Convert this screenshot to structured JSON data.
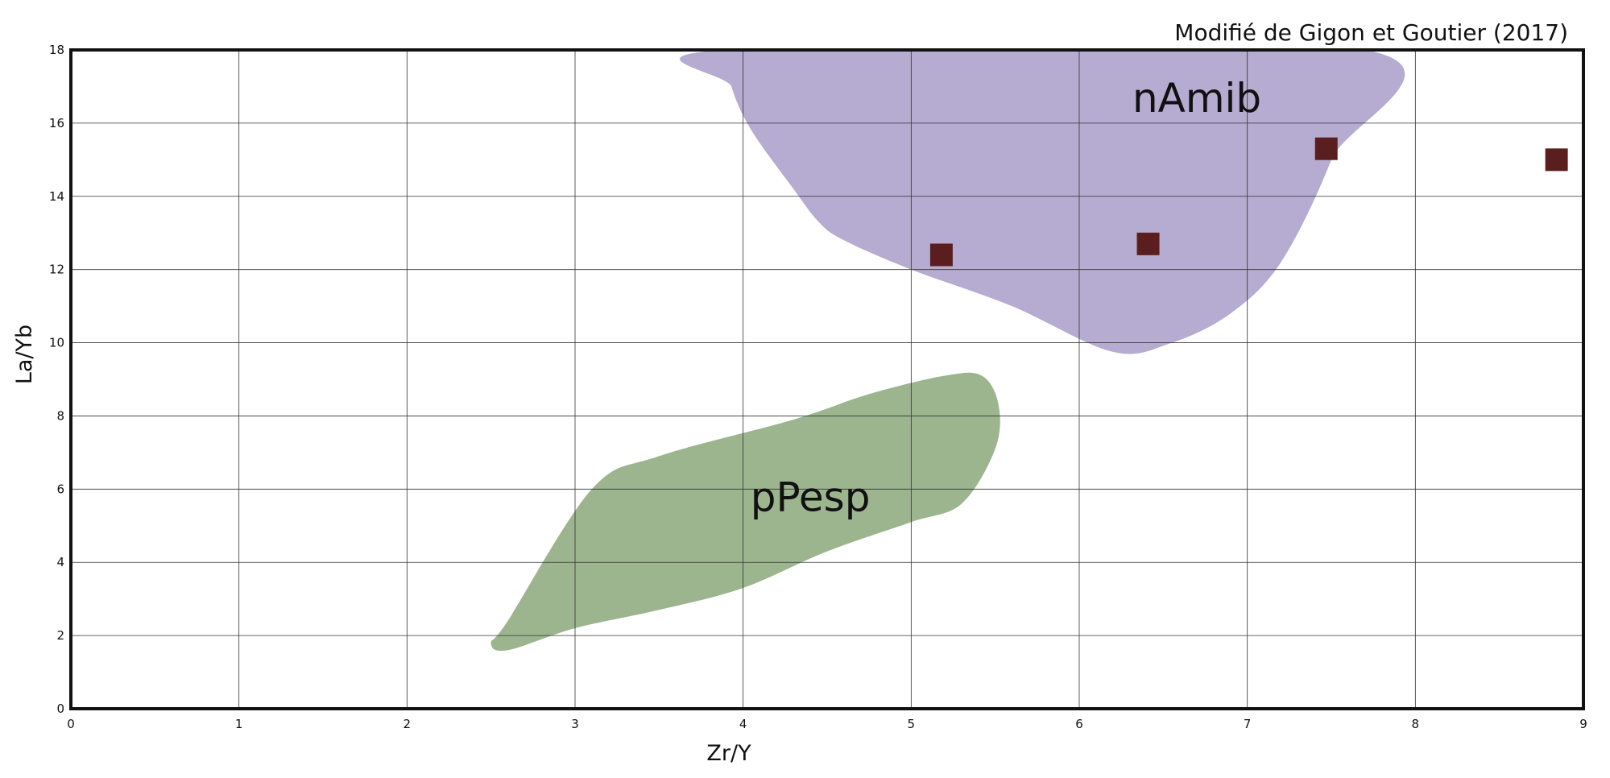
{
  "chart_data": {
    "type": "scatter",
    "title": "",
    "annotation": "Modifié de Gigon et Goutier (2017)",
    "xlabel": "Zr/Y",
    "ylabel": "La/Yb",
    "xlim": [
      0,
      9
    ],
    "ylim": [
      0,
      18
    ],
    "x_ticks": [
      "0",
      "1",
      "2",
      "3",
      "4",
      "5",
      "6",
      "7",
      "8",
      "9"
    ],
    "y_ticks": [
      "0",
      "2",
      "4",
      "6",
      "8",
      "10",
      "12",
      "14",
      "16",
      "18"
    ],
    "grid": true,
    "series": [
      {
        "marker": "square",
        "color": "#5a1e1e",
        "points": [
          {
            "x": 5.18,
            "y": 12.4
          },
          {
            "x": 6.41,
            "y": 12.7
          },
          {
            "x": 7.47,
            "y": 15.3
          },
          {
            "x": 8.84,
            "y": 15.0
          }
        ]
      }
    ],
    "fields": [
      {
        "name": "nAmib",
        "color": "#b6abd0",
        "outline": [
          [
            3.9,
            18.0
          ],
          [
            3.93,
            17.0
          ],
          [
            4.05,
            15.8
          ],
          [
            4.3,
            14.2
          ],
          [
            4.45,
            13.3
          ],
          [
            4.6,
            12.8
          ],
          [
            5.0,
            12.0
          ],
          [
            5.6,
            11.0
          ],
          [
            6.2,
            9.75
          ],
          [
            6.55,
            10.0
          ],
          [
            6.9,
            10.8
          ],
          [
            7.2,
            12.2
          ],
          [
            7.5,
            15.0
          ],
          [
            7.7,
            18.0
          ]
        ]
      },
      {
        "name": "pPesp",
        "color": "#9cb58e",
        "outline": [
          [
            2.5,
            1.8
          ],
          [
            2.6,
            1.6
          ],
          [
            3.0,
            2.2
          ],
          [
            3.5,
            2.7
          ],
          [
            4.0,
            3.3
          ],
          [
            4.5,
            4.3
          ],
          [
            5.0,
            5.1
          ],
          [
            5.3,
            5.6
          ],
          [
            5.5,
            7.1
          ],
          [
            5.52,
            8.3
          ],
          [
            5.42,
            9.1
          ],
          [
            5.2,
            9.1
          ],
          [
            4.75,
            8.6
          ],
          [
            4.3,
            7.9
          ],
          [
            3.5,
            6.9
          ],
          [
            3.1,
            6.0
          ],
          [
            2.6,
            2.4
          ]
        ]
      }
    ]
  }
}
